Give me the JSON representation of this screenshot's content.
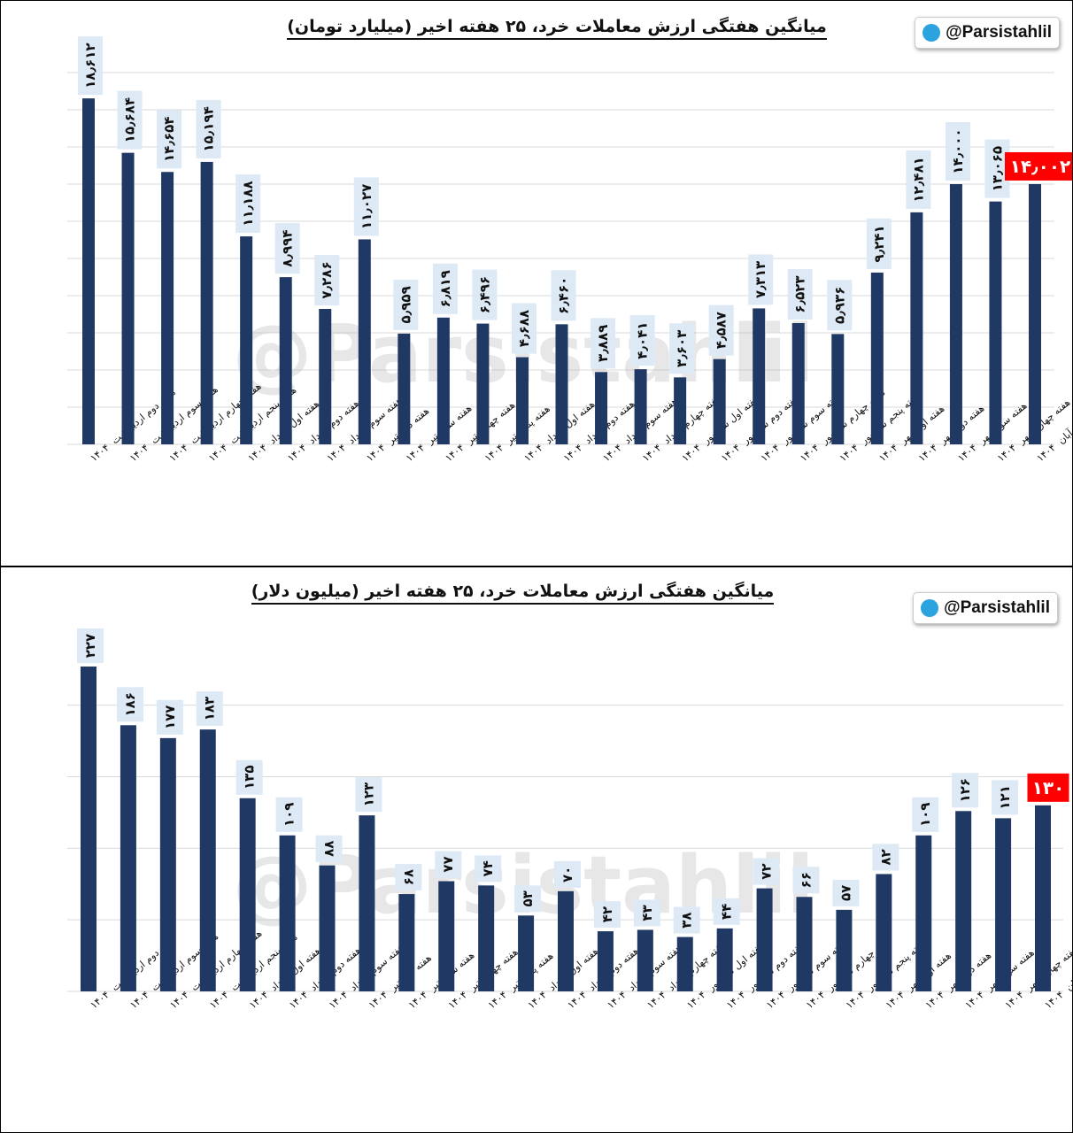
{
  "watermark": "@Parsistahlil",
  "badge": {
    "handle": "@Parsistahlil",
    "icon": "telegram-icon",
    "icon_color": "#2aa3de"
  },
  "colors": {
    "bar": "#1f3864",
    "label_bg": "#dde9f5",
    "highlight": "#ff0000",
    "grid": "#d9d9d9"
  },
  "chart_data": [
    {
      "type": "bar",
      "title": "میانگین هفتگی ارزش معاملات خرد، ۲۵ هفته اخیر (میلیارد تومان)",
      "ylim": [
        0,
        20
      ],
      "grid": true,
      "categories": [
        "هفته دوم اردیبهشت",
        "هفته سوم اردیبهشت",
        "هفته چهارم اردیبهشت",
        "هفته پنجم اردیبهشت",
        "هفته اول خرداد",
        "هفته دوم خرداد",
        "هفته سوم خرداد",
        "هفته دوم تیر",
        "هفته سوم تیر",
        "هفته چهارم تیر",
        "هفته پنجم تیر",
        "هفته اول مرداد",
        "هفته دوم مرداد",
        "هفته سوم مرداد",
        "هفته چهارم مرداد",
        "هفته اول شهریور",
        "هفته دوم شهریور",
        "هفته سوم شهریور",
        "هفته چهارم شهریور",
        "هفته پنجم شهریور",
        "هفته اول مهر",
        "هفته دوم مهر",
        "هفته سوم مهر",
        "هفته چهارم مهر",
        "هفته اول آبان"
      ],
      "category_year": "۱۴۰۴",
      "values": [
        18.612,
        15.684,
        14.654,
        15.194,
        11.188,
        8.994,
        7.286,
        11.027,
        5.959,
        6.819,
        6.496,
        4.688,
        6.46,
        3.889,
        4.041,
        3.603,
        4.587,
        7.313,
        6.523,
        5.936,
        9.241,
        12.481,
        14.0,
        13.065,
        14.002
      ],
      "data_labels": [
        "۱۸٫۶۱۲",
        "۱۵٫۶۸۴",
        "۱۴٫۶۵۴",
        "۱۵٫۱۹۴",
        "۱۱٫۱۸۸",
        "۸٫۹۹۴",
        "۷٫۲۸۶",
        "۱۱٫۰۲۷",
        "۵٫۹۵۹",
        "۶٫۸۱۹",
        "۶٫۴۹۶",
        "۴٫۶۸۸",
        "۶٫۴۶۰",
        "۳٫۸۸۹",
        "۴٫۰۴۱",
        "۳٫۶۰۳",
        "۴٫۵۸۷",
        "۷٫۳۱۳",
        "۶٫۵۲۳",
        "۵٫۹۳۶",
        "۹٫۲۴۱",
        "۱۲٫۴۸۱",
        "۱۴٫۰۰۰",
        "۱۳٫۰۶۵",
        "۱۴٫۰۰۲"
      ],
      "highlight_last": true
    },
    {
      "type": "bar",
      "title": "میانگین هفتگی ارزش معاملات خرد، ۲۵ هفته اخیر (میلیون دلار)",
      "ylim": [
        0,
        240
      ],
      "grid": true,
      "categories": [
        "هفته دوم اردیبهشت",
        "هفته سوم اردیبهشت",
        "هفته چهارم اردیبهشت",
        "هفته پنجم اردیبهشت",
        "هفته اول خرداد",
        "هفته دوم خرداد",
        "هفته سوم خرداد",
        "هفته دوم تیر",
        "هفته سوم تیر",
        "هفته چهارم تیر",
        "هفته پنجم تیر",
        "هفته اول مرداد",
        "هفته دوم مرداد",
        "هفته سوم مرداد",
        "هفته چهارم مرداد",
        "هفته اول شهریور",
        "هفته دوم شهریور",
        "هفته سوم شهریور",
        "هفته چهارم شهریور",
        "هفته پنجم شهریور",
        "هفته اول مهر",
        "هفته دوم مهر",
        "هفته سوم مهر",
        "هفته چهارم مهر",
        "هفته اول آبان"
      ],
      "category_year": "۱۴۰۴",
      "values": [
        227,
        186,
        177,
        183,
        135,
        109,
        88,
        123,
        68,
        77,
        74,
        53,
        70,
        42,
        43,
        38,
        44,
        72,
        66,
        57,
        82,
        109,
        126,
        121,
        130
      ],
      "data_labels": [
        "۲۲۷",
        "۱۸۶",
        "۱۷۷",
        "۱۸۳",
        "۱۳۵",
        "۱۰۹",
        "۸۸",
        "۱۲۳",
        "۶۸",
        "۷۷",
        "۷۴",
        "۵۳",
        "۷۰",
        "۴۲",
        "۴۳",
        "۳۸",
        "۴۴",
        "۷۲",
        "۶۶",
        "۵۷",
        "۸۲",
        "۱۰۹",
        "۱۲۶",
        "۱۲۱",
        "۱۳۰"
      ],
      "highlight_last": true
    }
  ]
}
